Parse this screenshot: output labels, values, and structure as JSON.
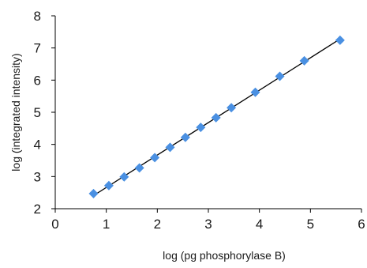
{
  "chart_data": {
    "type": "scatter",
    "title": "",
    "xlabel": "log (pg phosphorylase B)",
    "ylabel": "log (integrated intensity)",
    "xlim": [
      0,
      6
    ],
    "ylim": [
      2,
      8
    ],
    "xticks": [
      "0",
      "1",
      "2",
      "3",
      "4",
      "5",
      "6"
    ],
    "yticks": [
      "2",
      "3",
      "4",
      "5",
      "6",
      "7",
      "8"
    ],
    "grid": false,
    "legend": "none",
    "marker_color": "#4a90e2",
    "trendline_color": "#000000",
    "series": [
      {
        "marker": "diamond",
        "trendline": "linear",
        "points": [
          [
            0.75,
            2.47
          ],
          [
            1.05,
            2.72
          ],
          [
            1.35,
            2.99
          ],
          [
            1.65,
            3.27
          ],
          [
            1.95,
            3.59
          ],
          [
            2.25,
            3.91
          ],
          [
            2.55,
            4.22
          ],
          [
            2.85,
            4.53
          ],
          [
            3.15,
            4.83
          ],
          [
            3.45,
            5.14
          ],
          [
            3.92,
            5.62
          ],
          [
            4.4,
            6.12
          ],
          [
            4.88,
            6.6
          ],
          [
            5.58,
            7.24
          ]
        ]
      }
    ]
  }
}
